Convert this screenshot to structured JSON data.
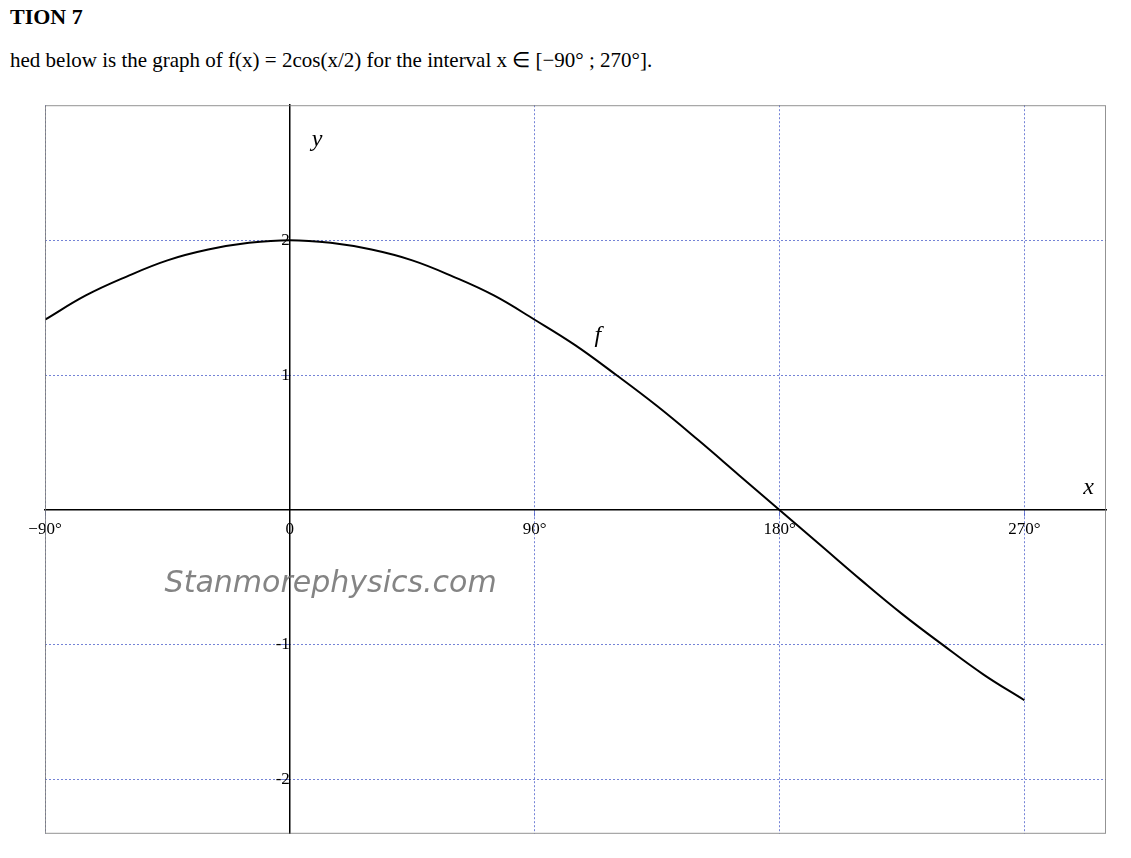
{
  "chart_data": {
    "type": "line",
    "title": "TION 7",
    "subtitle": "hed below is the graph of f(x) = 2cos(x/2) for the interval x ∈ [−90° ; 270°].",
    "xlabel": "x",
    "ylabel": "y",
    "x": [
      -90,
      -75,
      -60,
      -45,
      -30,
      -15,
      0,
      15,
      30,
      45,
      60,
      75,
      90,
      105,
      120,
      135,
      150,
      165,
      180,
      195,
      210,
      225,
      240,
      255,
      270
    ],
    "series": [
      {
        "color": "#000000",
        "values": [
          1.41,
          1.59,
          1.73,
          1.85,
          1.93,
          1.98,
          2.0,
          1.98,
          1.93,
          1.85,
          1.73,
          1.59,
          1.41,
          1.22,
          1.0,
          0.77,
          0.52,
          0.26,
          0.0,
          -0.26,
          -0.52,
          -0.77,
          -1.0,
          -1.22,
          -1.41
        ]
      }
    ],
    "xlim": [
      -90,
      300
    ],
    "ylim": [
      -2.4,
      3
    ],
    "xticks": [
      {
        "value": -90,
        "label": "−90°"
      },
      0,
      {
        "value": 90,
        "label": "90°"
      },
      {
        "value": 180,
        "label": "180°"
      },
      {
        "value": 270,
        "label": "270°"
      }
    ],
    "yticks": [
      -2,
      -1,
      1,
      2
    ],
    "grid": true,
    "annotations": [
      {
        "text": "f",
        "x": 112,
        "y": 1.2
      },
      {
        "text": "Stanmorephysics.com",
        "x": 15,
        "y": -0.55
      }
    ]
  }
}
